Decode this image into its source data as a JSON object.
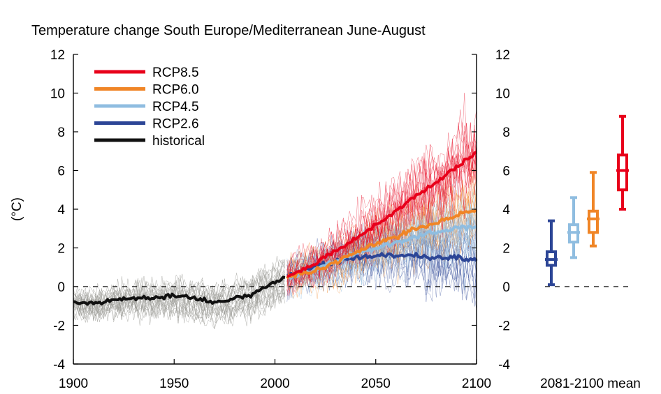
{
  "chart_data": {
    "type": "line",
    "title": "Temperature change South Europe/Mediterranean June-August",
    "ylabel": "(°C)",
    "xlabel": "",
    "xlim": [
      1900,
      2100
    ],
    "ylim": [
      -4,
      12
    ],
    "x_ticks": [
      1900,
      1950,
      2000,
      2050,
      2100
    ],
    "y_ticks": [
      -4,
      -2,
      0,
      2,
      4,
      6,
      8,
      10,
      12
    ],
    "zero_line": "dashed",
    "grid": false,
    "legend_position": "top-left",
    "series": [
      {
        "name": "RCP8.5",
        "color": "#e8001b",
        "x": [
          2006,
          2020,
          2030,
          2040,
          2050,
          2060,
          2070,
          2080,
          2090,
          2100
        ],
        "values": [
          0.5,
          1.2,
          1.8,
          2.5,
          3.2,
          3.9,
          4.7,
          5.4,
          6.2,
          6.9
        ]
      },
      {
        "name": "RCP6.0",
        "color": "#f08526",
        "x": [
          2006,
          2020,
          2030,
          2040,
          2050,
          2060,
          2070,
          2080,
          2090,
          2100
        ],
        "values": [
          0.5,
          0.8,
          1.3,
          1.8,
          2.2,
          2.6,
          3.0,
          3.3,
          3.7,
          4.0
        ]
      },
      {
        "name": "RCP4.5",
        "color": "#8fbde0",
        "x": [
          2006,
          2020,
          2030,
          2040,
          2050,
          2060,
          2070,
          2080,
          2090,
          2100
        ],
        "values": [
          0.5,
          0.9,
          1.3,
          1.7,
          2.0,
          2.3,
          2.6,
          2.8,
          3.0,
          3.1
        ]
      },
      {
        "name": "RCP2.6",
        "color": "#2c4596",
        "x": [
          2006,
          2020,
          2030,
          2040,
          2050,
          2060,
          2070,
          2080,
          2090,
          2100
        ],
        "values": [
          0.5,
          1.0,
          1.3,
          1.5,
          1.6,
          1.6,
          1.6,
          1.5,
          1.5,
          1.4
        ]
      },
      {
        "name": "historical",
        "color": "#111111",
        "x": [
          1900,
          1910,
          1920,
          1930,
          1940,
          1950,
          1960,
          1970,
          1980,
          1985,
          1990,
          1995,
          2000,
          2005
        ],
        "values": [
          -0.8,
          -0.9,
          -0.7,
          -0.6,
          -0.6,
          -0.5,
          -0.6,
          -0.8,
          -0.6,
          -0.5,
          -0.3,
          0.0,
          0.2,
          0.5
        ]
      }
    ],
    "box_panel": {
      "label": "2081-2100 mean",
      "boxes": [
        {
          "name": "RCP2.6",
          "color": "#2c4596",
          "min": 0.1,
          "q1": 1.1,
          "median": 1.4,
          "q3": 1.8,
          "max": 3.4
        },
        {
          "name": "RCP4.5",
          "color": "#8fbde0",
          "min": 1.5,
          "q1": 2.3,
          "median": 2.8,
          "q3": 3.2,
          "max": 4.6
        },
        {
          "name": "RCP6.0",
          "color": "#f08526",
          "min": 2.1,
          "q1": 2.8,
          "median": 3.5,
          "q3": 3.9,
          "max": 5.9
        },
        {
          "name": "RCP8.5",
          "color": "#e8001b",
          "min": 4.0,
          "q1": 5.0,
          "median": 6.0,
          "q3": 6.8,
          "max": 8.8
        }
      ]
    }
  }
}
